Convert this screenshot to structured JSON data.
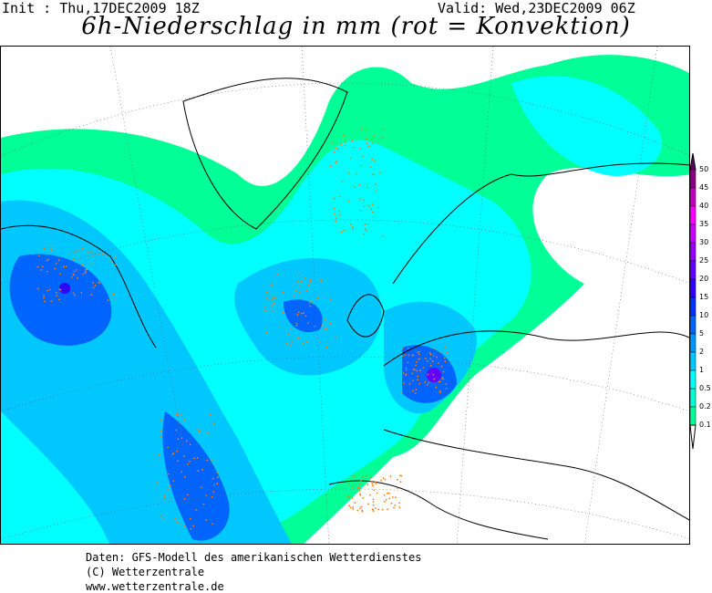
{
  "header": {
    "init": "Init : Thu,17DEC2009 18Z",
    "valid": "Valid: Wed,23DEC2009 06Z",
    "title": "6h-Niederschlag in mm (rot = Konvektion)"
  },
  "legend": {
    "labels": [
      "50",
      "45",
      "40",
      "35",
      "30",
      "25",
      "20",
      "15",
      "10",
      "5",
      "2",
      "1",
      "0.5",
      "0.2",
      "0.1"
    ],
    "colors": [
      "#8a0080",
      "#c000c0",
      "#ff00ff",
      "#c800ff",
      "#9600ff",
      "#6400ff",
      "#3200ff",
      "#0032ff",
      "#0064ff",
      "#0096ff",
      "#00c8ff",
      "#00ffff",
      "#00ffd2",
      "#00ff96"
    ],
    "top_arrow_color": "#600060",
    "bottom_arrow_color": "#ffffff",
    "convection_dot_color": "#ff7a00"
  },
  "footer": {
    "line1": "Daten: GFS-Modell des amerikanischen Wetterdienstes",
    "line2": "(C) Wetterzentrale",
    "line3": "www.wetterzentrale.de"
  }
}
